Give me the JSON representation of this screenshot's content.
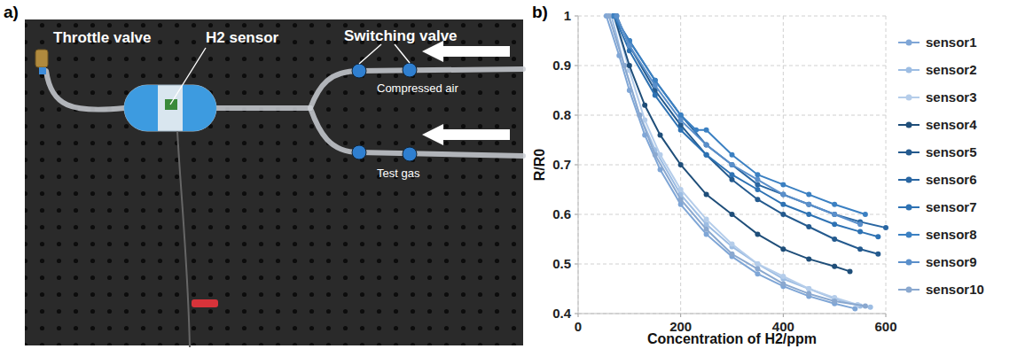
{
  "panels": {
    "a": {
      "letter": "a)",
      "labels": {
        "throttle_valve": "Throttle valve",
        "h2_sensor": "H2 sensor",
        "switching_valve": "Switching valve",
        "compressed_air": "Compressed air",
        "test_gas": "Test gas"
      }
    },
    "b": {
      "letter": "b)"
    }
  },
  "chart_data": {
    "type": "line",
    "x_label": "Concentration of H2/ppm",
    "y_label": "R/R0",
    "xlim": [
      0,
      600
    ],
    "xticks": [
      0,
      200,
      400,
      600
    ],
    "ylim": [
      0.4,
      1
    ],
    "yticks": [
      0.4,
      0.5,
      0.6,
      0.7,
      0.8,
      0.9,
      1
    ],
    "grid": true,
    "legend": "right",
    "marker": "circle",
    "series": [
      {
        "name": "sensor1",
        "color": "#7fa6d6",
        "x": [
          55,
          80,
          100,
          130,
          160,
          200,
          250,
          300,
          350,
          400,
          450,
          500,
          540
        ],
        "values": [
          1,
          0.92,
          0.85,
          0.76,
          0.69,
          0.62,
          0.56,
          0.515,
          0.48,
          0.455,
          0.435,
          0.42,
          0.41
        ]
      },
      {
        "name": "sensor2",
        "color": "#9dbde3",
        "x": [
          65,
          90,
          120,
          150,
          200,
          250,
          300,
          350,
          400,
          450,
          500,
          550,
          570
        ],
        "values": [
          1,
          0.9,
          0.8,
          0.73,
          0.64,
          0.58,
          0.535,
          0.5,
          0.47,
          0.45,
          0.43,
          0.415,
          0.413
        ]
      },
      {
        "name": "sensor3",
        "color": "#b5cdea",
        "x": [
          70,
          100,
          130,
          160,
          200,
          250,
          300,
          350,
          400,
          450,
          500,
          545
        ],
        "values": [
          1,
          0.89,
          0.79,
          0.72,
          0.65,
          0.59,
          0.54,
          0.5,
          0.475,
          0.45,
          0.432,
          0.418
        ]
      },
      {
        "name": "sensor4",
        "color": "#1f4e79",
        "x": [
          70,
          100,
          130,
          160,
          200,
          250,
          300,
          350,
          400,
          450,
          500,
          530
        ],
        "values": [
          1,
          0.9,
          0.82,
          0.76,
          0.7,
          0.64,
          0.6,
          0.56,
          0.53,
          0.51,
          0.495,
          0.485
        ]
      },
      {
        "name": "sensor5",
        "color": "#245a8e",
        "x": [
          75,
          100,
          150,
          200,
          250,
          300,
          350,
          400,
          450,
          500,
          550,
          585
        ],
        "values": [
          1,
          0.94,
          0.85,
          0.78,
          0.72,
          0.67,
          0.63,
          0.6,
          0.575,
          0.55,
          0.53,
          0.52
        ]
      },
      {
        "name": "sensor6",
        "color": "#2966a2",
        "x": [
          70,
          100,
          150,
          200,
          250,
          300,
          350,
          400,
          450,
          500,
          550,
          600
        ],
        "values": [
          1,
          0.95,
          0.87,
          0.8,
          0.74,
          0.7,
          0.66,
          0.64,
          0.62,
          0.6,
          0.585,
          0.573
        ]
      },
      {
        "name": "sensor7",
        "color": "#2e72b3",
        "x": [
          70,
          100,
          150,
          200,
          250,
          300,
          350,
          400,
          450,
          500,
          550,
          585
        ],
        "values": [
          1,
          0.93,
          0.84,
          0.77,
          0.72,
          0.68,
          0.65,
          0.62,
          0.6,
          0.58,
          0.565,
          0.555
        ]
      },
      {
        "name": "sensor8",
        "color": "#3b80c2",
        "x": [
          70,
          100,
          150,
          200,
          230,
          250,
          300,
          350,
          400,
          450,
          500,
          560
        ],
        "values": [
          1,
          0.95,
          0.87,
          0.8,
          0.77,
          0.77,
          0.72,
          0.68,
          0.66,
          0.64,
          0.62,
          0.6
        ]
      },
      {
        "name": "sensor9",
        "color": "#5a8fca",
        "x": [
          75,
          100,
          150,
          200,
          250,
          300,
          350,
          400,
          450,
          500,
          550
        ],
        "values": [
          1,
          0.94,
          0.86,
          0.79,
          0.74,
          0.7,
          0.67,
          0.64,
          0.62,
          0.6,
          0.58
        ]
      },
      {
        "name": "sensor10",
        "color": "#8aa8cf",
        "x": [
          60,
          90,
          120,
          150,
          200,
          250,
          300,
          350,
          400,
          450,
          500,
          560
        ],
        "values": [
          1,
          0.9,
          0.8,
          0.72,
          0.63,
          0.57,
          0.52,
          0.49,
          0.46,
          0.44,
          0.425,
          0.415
        ]
      }
    ]
  }
}
